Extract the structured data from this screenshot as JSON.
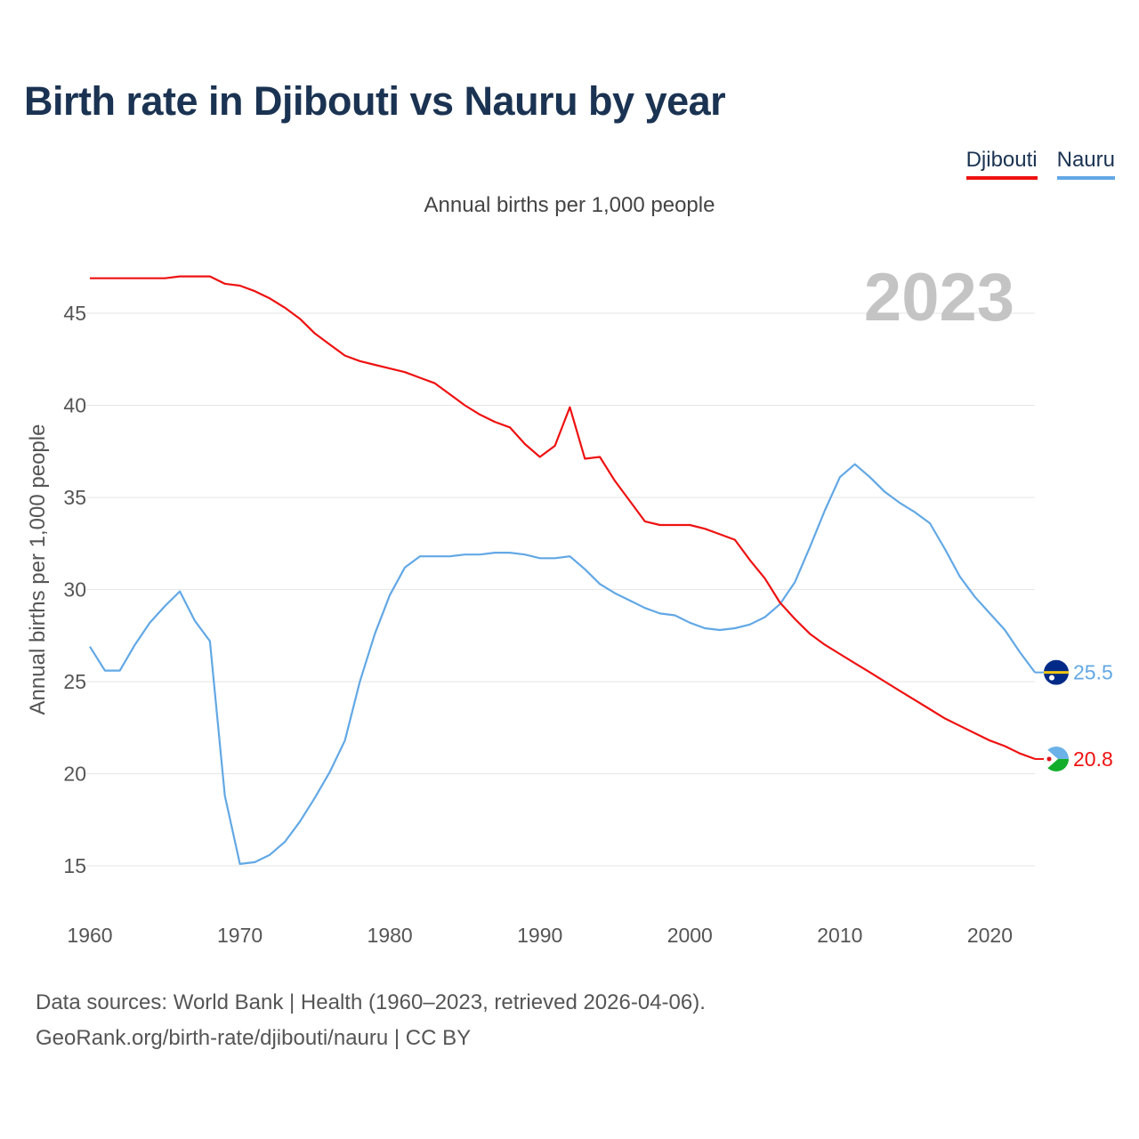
{
  "title": "Birth rate in Djibouti vs Nauru by year",
  "subtitle": "Annual births per 1,000 people",
  "source_line1": "Data sources: World Bank | Health (1960–2023, retrieved 2026-04-06).",
  "source_line2": "GeoRank.org/birth-rate/djibouti/nauru | CC BY",
  "legend": [
    {
      "name": "Djibouti",
      "color": "#ee1111"
    },
    {
      "name": "Nauru",
      "color": "#62a8e5"
    }
  ],
  "chart_data": {
    "type": "line",
    "title": "Birth rate in Djibouti vs Nauru by year",
    "subtitle": "Annual births per 1,000 people",
    "xlabel": "",
    "ylabel": "Annual births per 1,000 people",
    "xlim": [
      1960,
      2023
    ],
    "ylim": [
      13,
      48
    ],
    "x_ticks": [
      1960,
      1970,
      1980,
      1990,
      2000,
      2010,
      2020
    ],
    "y_ticks": [
      15,
      20,
      25,
      30,
      35,
      40,
      45
    ],
    "grid": true,
    "legend_position": "top-right",
    "year_label": "2023",
    "x": [
      1960,
      1961,
      1962,
      1963,
      1964,
      1965,
      1966,
      1967,
      1968,
      1969,
      1970,
      1971,
      1972,
      1973,
      1974,
      1975,
      1976,
      1977,
      1978,
      1979,
      1980,
      1981,
      1982,
      1983,
      1984,
      1985,
      1986,
      1987,
      1988,
      1989,
      1990,
      1991,
      1992,
      1993,
      1994,
      1995,
      1996,
      1997,
      1998,
      1999,
      2000,
      2001,
      2002,
      2003,
      2004,
      2005,
      2006,
      2007,
      2008,
      2009,
      2010,
      2011,
      2012,
      2013,
      2014,
      2015,
      2016,
      2017,
      2018,
      2019,
      2020,
      2021,
      2022,
      2023
    ],
    "series": [
      {
        "name": "Djibouti",
        "color": "#ee1111",
        "end_label": "20.8",
        "values": [
          46.9,
          46.9,
          46.9,
          46.9,
          46.9,
          46.9,
          47.0,
          47.0,
          47.0,
          46.6,
          46.5,
          46.2,
          45.8,
          45.3,
          44.7,
          43.9,
          43.3,
          42.7,
          42.4,
          42.2,
          42.0,
          41.8,
          41.5,
          41.2,
          40.6,
          40.0,
          39.5,
          39.1,
          38.8,
          37.9,
          37.2,
          37.8,
          39.9,
          37.1,
          37.2,
          35.9,
          34.8,
          33.7,
          33.5,
          33.5,
          33.5,
          33.3,
          33.0,
          32.7,
          31.6,
          30.6,
          29.3,
          28.4,
          27.6,
          27.0,
          26.5,
          26.0,
          25.5,
          25.0,
          24.5,
          24.0,
          23.5,
          23.0,
          22.6,
          22.2,
          21.8,
          21.5,
          21.1,
          20.8
        ]
      },
      {
        "name": "Nauru",
        "color": "#62a8e5",
        "end_label": "25.5",
        "values": [
          26.9,
          25.6,
          25.6,
          27.0,
          28.2,
          29.1,
          29.9,
          28.3,
          27.2,
          18.8,
          15.1,
          15.2,
          15.6,
          16.3,
          17.4,
          18.7,
          20.1,
          21.8,
          25.0,
          27.6,
          29.7,
          31.2,
          31.8,
          31.8,
          31.8,
          31.9,
          31.9,
          32.0,
          32.0,
          31.9,
          31.7,
          31.7,
          31.8,
          31.1,
          30.3,
          29.8,
          29.4,
          29.0,
          28.7,
          28.6,
          28.2,
          27.9,
          27.8,
          27.9,
          28.1,
          28.5,
          29.2,
          30.4,
          32.3,
          34.3,
          36.1,
          36.8,
          36.1,
          35.3,
          34.7,
          34.2,
          33.6,
          32.2,
          30.7,
          29.6,
          28.7,
          27.8,
          26.6,
          25.5
        ]
      }
    ]
  }
}
